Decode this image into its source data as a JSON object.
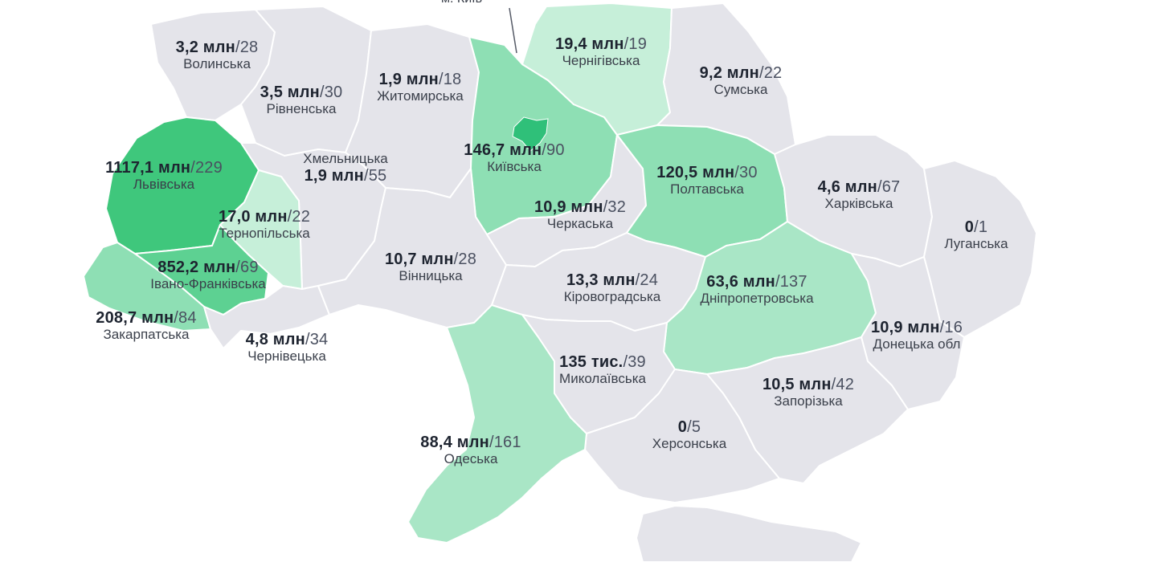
{
  "palette": {
    "region_default": "#e4e4ea",
    "level_1": "#c6efd9",
    "level_2": "#a9e6c6",
    "level_3": "#8edfb4",
    "level_4": "#5dd192",
    "level_5": "#3fc77c",
    "kyiv_city": "#2fc079",
    "kyiv_marker_line": "#555a66"
  },
  "kyiv_city": {
    "label": "м. Київ"
  },
  "regions": [
    {
      "key": "volynska",
      "name": "Волинська",
      "amount": "3,2 млн",
      "count": "28",
      "fill": "region_default"
    },
    {
      "key": "rivnenska",
      "name": "Рівненська",
      "amount": "3,5 млн",
      "count": "30",
      "fill": "region_default"
    },
    {
      "key": "zhytomyrska",
      "name": "Житомирська",
      "amount": "1,9 млн",
      "count": "18",
      "fill": "region_default"
    },
    {
      "key": "kyivska",
      "name": "Київська",
      "amount": "146,7 млн",
      "count": "90",
      "fill": "level_3"
    },
    {
      "key": "chernihivska",
      "name": "Чернігівська",
      "amount": "19,4 млн",
      "count": "19",
      "fill": "level_1"
    },
    {
      "key": "sumska",
      "name": "Сумська",
      "amount": "9,2 млн",
      "count": "22",
      "fill": "region_default"
    },
    {
      "key": "lvivska",
      "name": "Львівська",
      "amount": "1117,1 млн",
      "count": "229",
      "fill": "level_5"
    },
    {
      "key": "khmelnytska",
      "name": "Хмельницька",
      "amount": "1,9 млн",
      "count": "55",
      "fill": "region_default"
    },
    {
      "key": "ternopilska",
      "name": "Тернопільська",
      "amount": "17,0 млн",
      "count": "22",
      "fill": "level_1"
    },
    {
      "key": "ivanofrankivska",
      "name": "Івано-Франківська",
      "amount": "852,2 млн",
      "count": "69",
      "fill": "level_4"
    },
    {
      "key": "zakarpatska",
      "name": "Закарпатська",
      "amount": "208,7 млн",
      "count": "84",
      "fill": "level_3"
    },
    {
      "key": "chernivetska",
      "name": "Чернівецька",
      "amount": "4,8 млн",
      "count": "34",
      "fill": "region_default"
    },
    {
      "key": "vinnytska",
      "name": "Вінницька",
      "amount": "10,7 млн",
      "count": "28",
      "fill": "region_default"
    },
    {
      "key": "cherkaska",
      "name": "Черкаська",
      "amount": "10,9 млн",
      "count": "32",
      "fill": "region_default"
    },
    {
      "key": "poltavska",
      "name": "Полтавська",
      "amount": "120,5 млн",
      "count": "30",
      "fill": "level_3"
    },
    {
      "key": "kharkivska",
      "name": "Харківська",
      "amount": "4,6 млн",
      "count": "67",
      "fill": "region_default"
    },
    {
      "key": "luhanska",
      "name": "Луганська",
      "amount": "0",
      "count": "1",
      "fill": "region_default"
    },
    {
      "key": "kirovohradska",
      "name": "Кіровоградська",
      "amount": "13,3 млн",
      "count": "24",
      "fill": "region_default"
    },
    {
      "key": "dnipropetrovska",
      "name": "Дніпропетровська",
      "amount": "63,6 млн",
      "count": "137",
      "fill": "level_2"
    },
    {
      "key": "donetska",
      "name": "Донецька обл",
      "amount": "10,9 млн",
      "count": "16",
      "fill": "region_default"
    },
    {
      "key": "mykolaivska",
      "name": "Миколаївська",
      "amount": "135 тис.",
      "count": "39",
      "fill": "region_default"
    },
    {
      "key": "zaporizka",
      "name": "Запорізька",
      "amount": "10,5 млн",
      "count": "42",
      "fill": "region_default"
    },
    {
      "key": "khersonska",
      "name": "Херсонська",
      "amount": "0",
      "count": "5",
      "fill": "region_default"
    },
    {
      "key": "odeska",
      "name": "Одеська",
      "amount": "88,4 млн",
      "count": "161",
      "fill": "level_2"
    },
    {
      "key": "crimea",
      "name": "",
      "amount": "",
      "count": "",
      "fill": "region_default"
    }
  ]
}
